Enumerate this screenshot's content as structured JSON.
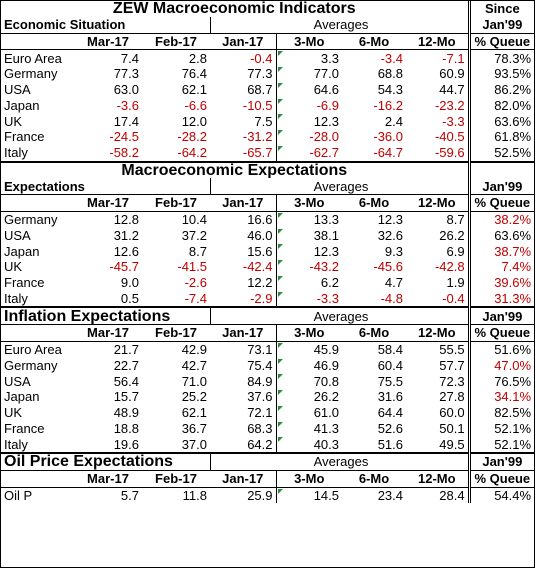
{
  "title": "ZEW Macroeconomic Indicators",
  "since_label": "Since",
  "columns": {
    "m1": "Mar-17",
    "m2": "Feb-17",
    "m3": "Jan-17",
    "a3": "3-Mo",
    "a6": "6-Mo",
    "a12": "12-Mo",
    "queue": "% Queue",
    "jan99": "Jan'99",
    "averages": "Averages"
  },
  "sections": [
    {
      "title": "",
      "row_header": "Economic Situation",
      "rows": [
        {
          "label": "Euro Area",
          "values": [
            "7.4",
            "2.8",
            "-0.4",
            "3.3",
            "-3.4",
            "-7.1",
            "78.3%"
          ]
        },
        {
          "label": "Germany",
          "values": [
            "77.3",
            "76.4",
            "77.3",
            "77.0",
            "68.8",
            "60.9",
            "93.5%"
          ]
        },
        {
          "label": "USA",
          "values": [
            "63.0",
            "62.1",
            "68.7",
            "64.6",
            "54.3",
            "44.7",
            "86.2%"
          ]
        },
        {
          "label": "Japan",
          "values": [
            "-3.6",
            "-6.6",
            "-10.5",
            "-6.9",
            "-16.2",
            "-23.2",
            "82.0%"
          ]
        },
        {
          "label": "UK",
          "values": [
            "17.4",
            "12.0",
            "7.5",
            "12.3",
            "2.4",
            "-3.3",
            "63.6%"
          ]
        },
        {
          "label": "France",
          "values": [
            "-24.5",
            "-28.2",
            "-31.2",
            "-28.0",
            "-36.0",
            "-40.5",
            "61.8%"
          ]
        },
        {
          "label": "Italy",
          "values": [
            "-58.2",
            "-64.2",
            "-65.7",
            "-62.7",
            "-64.7",
            "-59.6",
            "52.5%"
          ]
        }
      ]
    },
    {
      "title": "Macroeconomic Expectations",
      "row_header": "Expectations",
      "rows": [
        {
          "label": "Germany",
          "values": [
            "12.8",
            "10.4",
            "16.6",
            "13.3",
            "12.3",
            "8.7",
            "38.2%"
          ]
        },
        {
          "label": "USA",
          "values": [
            "31.2",
            "37.2",
            "46.0",
            "38.1",
            "32.6",
            "26.2",
            "63.6%"
          ]
        },
        {
          "label": "Japan",
          "values": [
            "12.6",
            "8.7",
            "15.6",
            "12.3",
            "9.3",
            "6.9",
            "38.7%"
          ]
        },
        {
          "label": "UK",
          "values": [
            "-45.7",
            "-41.5",
            "-42.4",
            "-43.2",
            "-45.6",
            "-42.8",
            "7.4%"
          ]
        },
        {
          "label": "France",
          "values": [
            "9.0",
            "-2.6",
            "12.2",
            "6.2",
            "4.7",
            "1.9",
            "39.6%"
          ]
        },
        {
          "label": "Italy",
          "values": [
            "0.5",
            "-7.4",
            "-2.9",
            "-3.3",
            "-4.8",
            "-0.4",
            "31.3%"
          ]
        }
      ]
    },
    {
      "title": "Inflation Expectations",
      "row_header": "",
      "rows": [
        {
          "label": "Euro Area",
          "values": [
            "21.7",
            "42.9",
            "73.1",
            "45.9",
            "58.4",
            "55.5",
            "51.6%"
          ]
        },
        {
          "label": "Germany",
          "values": [
            "22.7",
            "42.7",
            "75.4",
            "46.9",
            "60.4",
            "57.7",
            "47.0%"
          ]
        },
        {
          "label": "USA",
          "values": [
            "56.4",
            "71.0",
            "84.9",
            "70.8",
            "75.5",
            "72.3",
            "76.5%"
          ]
        },
        {
          "label": "Japan",
          "values": [
            "15.7",
            "25.2",
            "37.6",
            "26.2",
            "31.6",
            "27.8",
            "34.1%"
          ]
        },
        {
          "label": "UK",
          "values": [
            "48.9",
            "62.1",
            "72.1",
            "61.0",
            "64.4",
            "60.0",
            "82.5%"
          ]
        },
        {
          "label": "France",
          "values": [
            "18.8",
            "36.7",
            "68.3",
            "41.3",
            "52.6",
            "50.1",
            "52.1%"
          ]
        },
        {
          "label": "Italy",
          "values": [
            "19.6",
            "37.0",
            "64.2",
            "40.3",
            "51.6",
            "49.5",
            "52.1%"
          ]
        }
      ]
    },
    {
      "title": "Oil Price Expectations",
      "row_header": "",
      "rows": [
        {
          "label": "Oil P",
          "values": [
            "5.7",
            "11.8",
            "25.9",
            "14.5",
            "23.4",
            "28.4",
            "54.4%"
          ]
        }
      ]
    }
  ],
  "colors": {
    "negative": "#c00000",
    "queue_low": "#c00000",
    "marker": "#2e8b3e"
  }
}
